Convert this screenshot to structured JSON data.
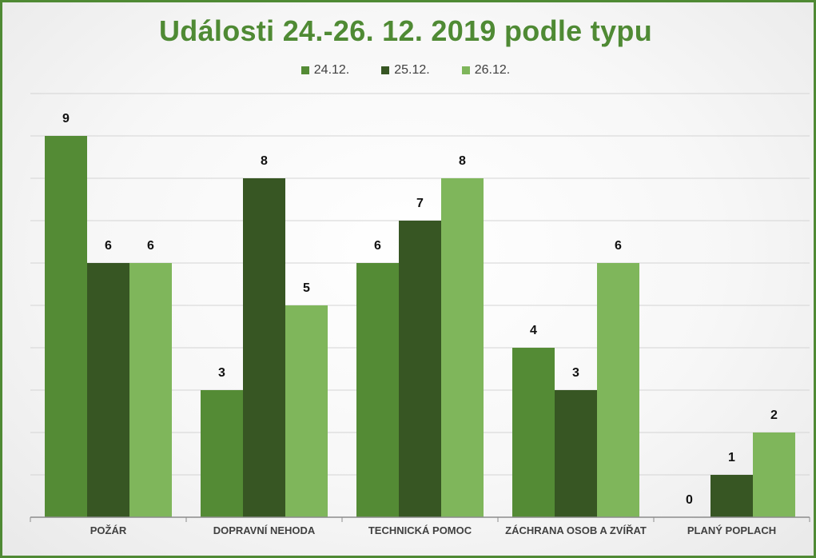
{
  "chart_data": {
    "type": "bar",
    "title": "Události 24.-26. 12. 2019 podle typu",
    "xlabel": "",
    "ylabel": "",
    "ylim": [
      0,
      10
    ],
    "grid": true,
    "legend_position": "top",
    "categories": [
      "POŽÁR",
      "DOPRAVNÍ NEHODA",
      "TECHNICKÁ POMOC",
      "ZÁCHRANA OSOB A ZVÍŘAT",
      "PLANÝ POPLACH"
    ],
    "series": [
      {
        "name": "24.12.",
        "color": "#548b35",
        "values": [
          9,
          3,
          6,
          4,
          0
        ]
      },
      {
        "name": "25.12.",
        "color": "#375623",
        "values": [
          6,
          8,
          7,
          3,
          1
        ]
      },
      {
        "name": "26.12.",
        "color": "#7fb65b",
        "values": [
          6,
          5,
          8,
          6,
          2
        ]
      }
    ]
  }
}
